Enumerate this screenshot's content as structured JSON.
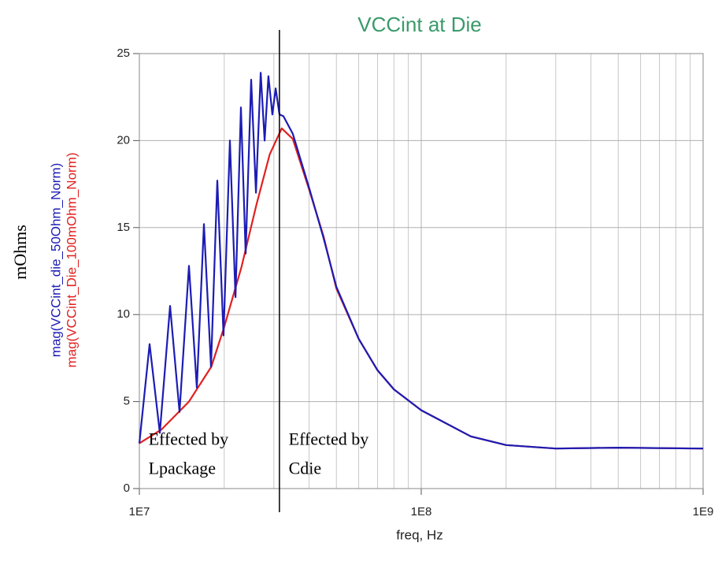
{
  "chart_data": {
    "type": "line",
    "title": "VCCint at Die",
    "title_color": "#3a9a6a",
    "x_label": "freq, Hz",
    "y_label": "mOhms",
    "log_x": true,
    "grid": true,
    "xlim": [
      10000000,
      1000000000
    ],
    "xticks": [
      {
        "value": 10000000,
        "label": "1E7"
      },
      {
        "value": 100000000,
        "label": "1E8"
      },
      {
        "value": 1000000000,
        "label": "1E9"
      }
    ],
    "xminorticks": [
      20000000,
      30000000,
      40000000,
      50000000,
      60000000,
      70000000,
      80000000,
      90000000,
      200000000,
      300000000,
      400000000,
      500000000,
      600000000,
      700000000,
      800000000,
      900000000
    ],
    "ylim": [
      0,
      25
    ],
    "yticks": [
      0,
      5,
      10,
      15,
      20,
      25
    ],
    "vline_x": 31400000,
    "annotations": [
      {
        "lines": [
          "Effected by",
          "Lpackage"
        ],
        "x": 10500000,
        "y": 2.2
      },
      {
        "lines": [
          "Effected by",
          "Cdie"
        ],
        "x": 33000000,
        "y": 2.2
      }
    ],
    "series": [
      {
        "name": "mag(VCCint_die_50Ohm_Norm)",
        "color": "#1c1cb4",
        "x": [
          10000000,
          10870000,
          11820000,
          12850000,
          13880000,
          15000000,
          15990000,
          16950000,
          17950000,
          18900000,
          19890000,
          20950000,
          21930000,
          22930000,
          23830000,
          24930000,
          25920000,
          26940000,
          27820000,
          28690000,
          29630000,
          30440000,
          31410000,
          32450000,
          35000000,
          40000000,
          45000000,
          50000000,
          60000000,
          70000000,
          80000000,
          100000000,
          150000000,
          200000000,
          300000000,
          500000000,
          1000000000
        ],
        "values": [
          2.6,
          8.3,
          3.2,
          10.5,
          4.4,
          12.8,
          5.8,
          15.2,
          7.0,
          17.7,
          8.8,
          20.0,
          11.0,
          21.9,
          13.5,
          23.5,
          17.0,
          23.9,
          20.0,
          23.7,
          21.5,
          23.0,
          21.5,
          21.4,
          20.4,
          17.3,
          14.4,
          11.6,
          8.6,
          6.8,
          5.7,
          4.5,
          3.0,
          2.5,
          2.3,
          2.35,
          2.3
        ]
      },
      {
        "name": "mag(VCCint_Die_100mOhm_Norm)",
        "color": "#e02020",
        "x": [
          10000000,
          12000000,
          15000000,
          18000000,
          20000000,
          23000000,
          26000000,
          29000000,
          32000000,
          35000000,
          40000000,
          45000000,
          50000000,
          60000000,
          70000000,
          80000000,
          100000000,
          150000000,
          200000000,
          300000000,
          500000000,
          1000000000
        ],
        "values": [
          2.6,
          3.4,
          5.0,
          7.0,
          9.3,
          12.7,
          16.3,
          19.2,
          20.7,
          20.1,
          17.2,
          14.5,
          11.5,
          8.6,
          6.8,
          5.7,
          4.5,
          3.0,
          2.5,
          2.3,
          2.35,
          2.3
        ]
      }
    ]
  }
}
